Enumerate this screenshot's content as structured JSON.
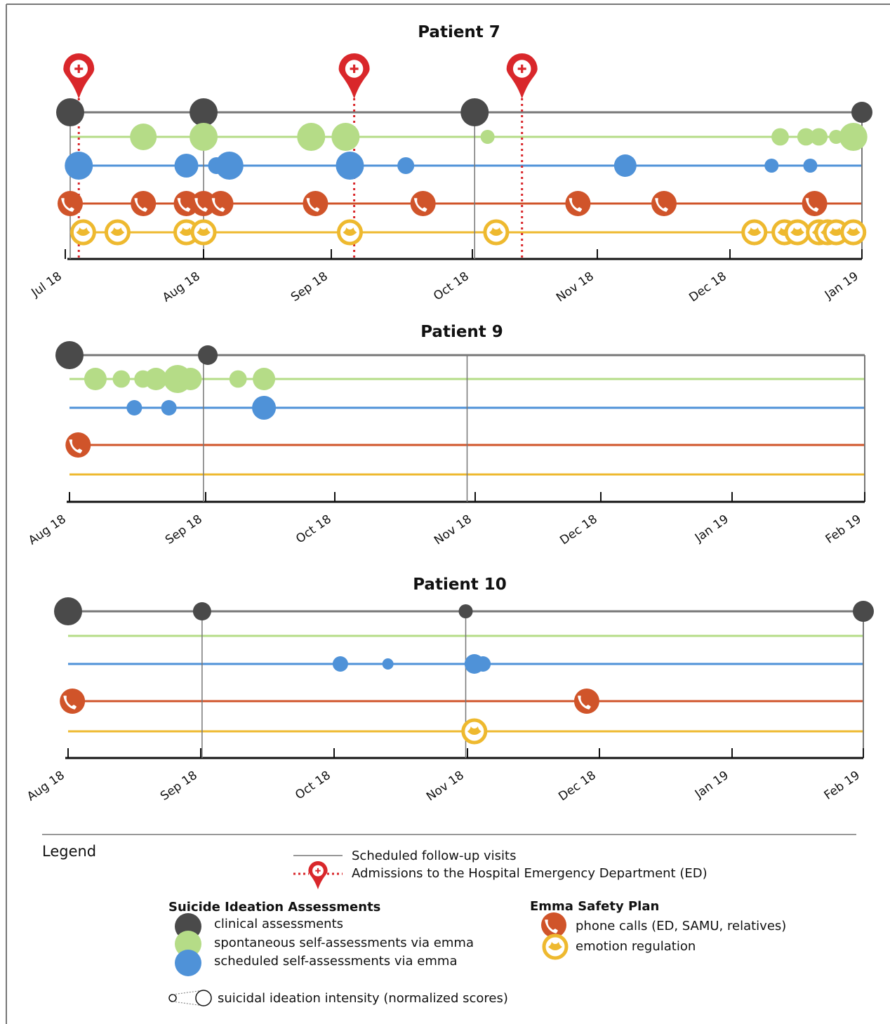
{
  "colors": {
    "clinical": "#4a4a4a",
    "spontaneous": "#b5dc87",
    "scheduled": "#4f92d8",
    "phone": "#d0542a",
    "emotion": "#eeb92f",
    "ed": "#d9272b"
  },
  "icons": {
    "admission": "map-pin-plus-icon",
    "phone": "phone-icon",
    "emotion": "lotus-icon"
  },
  "chart_data": [
    {
      "type": "timeline-bubble",
      "title": "Patient 7",
      "x_ticks": [
        "Jul 18",
        "Aug 18",
        "Sep 18",
        "Oct 18",
        "Nov 18",
        "Dec 18",
        "Jan 19"
      ],
      "x_range_days": [
        0,
        184
      ],
      "rows": [
        "clinical assessments",
        "spontaneous self-assessments via emma",
        "scheduled self-assessments via emma",
        "phone calls (ED, SAMU, relatives)",
        "emotion regulation"
      ],
      "scheduled_visits_day": [
        0,
        31,
        94
      ],
      "ed_admissions_day": [
        2,
        66,
        105
      ],
      "clinical": [
        [
          0,
          1.0
        ],
        [
          31,
          1.0
        ],
        [
          94,
          1.0
        ],
        [
          184,
          0.75
        ]
      ],
      "spontaneous": [
        [
          17,
          0.95
        ],
        [
          31,
          1.0
        ],
        [
          56,
          1.0
        ],
        [
          64,
          1.0
        ],
        [
          97,
          0.5
        ],
        [
          165,
          0.62
        ],
        [
          171,
          0.62
        ],
        [
          174,
          0.62
        ],
        [
          178,
          0.5
        ],
        [
          182,
          1.0
        ]
      ],
      "scheduled": [
        [
          2,
          1.0
        ],
        [
          27,
          0.85
        ],
        [
          34,
          0.6
        ],
        [
          37,
          1.0
        ],
        [
          65,
          1.0
        ],
        [
          78,
          0.6
        ],
        [
          129,
          0.8
        ],
        [
          163,
          0.5
        ],
        [
          172,
          0.5
        ]
      ],
      "phone": [
        0,
        17,
        27,
        31,
        35,
        57,
        82,
        118,
        138,
        173
      ],
      "emotion": [
        3,
        11,
        27,
        31,
        65,
        99,
        159,
        166,
        169,
        174,
        176,
        178,
        182
      ]
    },
    {
      "type": "timeline-bubble",
      "title": "Patient 9",
      "x_ticks": [
        "Aug 18",
        "Sep 18",
        "Oct 18",
        "Nov 18",
        "Dec 18",
        "Jan 19",
        "Feb 19"
      ],
      "x_range_days": [
        0,
        184
      ],
      "rows": [
        "clinical assessments",
        "spontaneous self-assessments via emma",
        "scheduled self-assessments via emma",
        "phone calls (ED, SAMU, relatives)",
        "emotion regulation"
      ],
      "scheduled_visits_day": [
        31,
        92
      ],
      "ed_admissions_day": [],
      "clinical": [
        [
          0,
          1.0
        ],
        [
          32,
          0.7
        ]
      ],
      "spontaneous": [
        [
          6,
          0.8
        ],
        [
          12,
          0.62
        ],
        [
          17,
          0.62
        ],
        [
          20,
          0.8
        ],
        [
          25,
          1.0
        ],
        [
          28,
          0.8
        ],
        [
          39,
          0.62
        ],
        [
          45,
          0.8
        ]
      ],
      "scheduled": [
        [
          15,
          0.55
        ],
        [
          23,
          0.55
        ],
        [
          45,
          0.85
        ]
      ],
      "phone": [
        2
      ],
      "emotion": []
    },
    {
      "type": "timeline-bubble",
      "title": "Patient 10",
      "x_ticks": [
        "Aug 18",
        "Sep 18",
        "Oct 18",
        "Nov 18",
        "Dec 18",
        "Jan 19",
        "Feb 19"
      ],
      "x_range_days": [
        0,
        184
      ],
      "rows": [
        "clinical assessments",
        "spontaneous self-assessments via emma",
        "scheduled self-assessments via emma",
        "phone calls (ED, SAMU, relatives)",
        "emotion regulation"
      ],
      "scheduled_visits_day": [
        31,
        92
      ],
      "ed_admissions_day": [],
      "clinical": [
        [
          0,
          1.0
        ],
        [
          31,
          0.65
        ],
        [
          92,
          0.5
        ],
        [
          184,
          0.75
        ]
      ],
      "spontaneous": [],
      "scheduled": [
        [
          63,
          0.55
        ],
        [
          74,
          0.4
        ],
        [
          94,
          0.7
        ],
        [
          96,
          0.55
        ]
      ],
      "phone": [
        1,
        120
      ],
      "emotion": [
        94
      ]
    }
  ],
  "legend": {
    "title": "Legend",
    "visits_label": "Scheduled follow-up visits",
    "ed_label": "Admissions to the Hospital Emergency Department (ED)",
    "assess_heading": "Suicide Ideation Assessments",
    "clinical_label": "clinical assessments",
    "spontaneous_label": "spontaneous self-assessments via emma",
    "scheduled_label": "scheduled self-assessments via emma",
    "plan_heading": "Emma Safety Plan",
    "phone_label": "phone calls (ED, SAMU, relatives)",
    "emotion_label": "emotion regulation",
    "intensity_label": "suicidal ideation intensity (normalized scores)"
  }
}
